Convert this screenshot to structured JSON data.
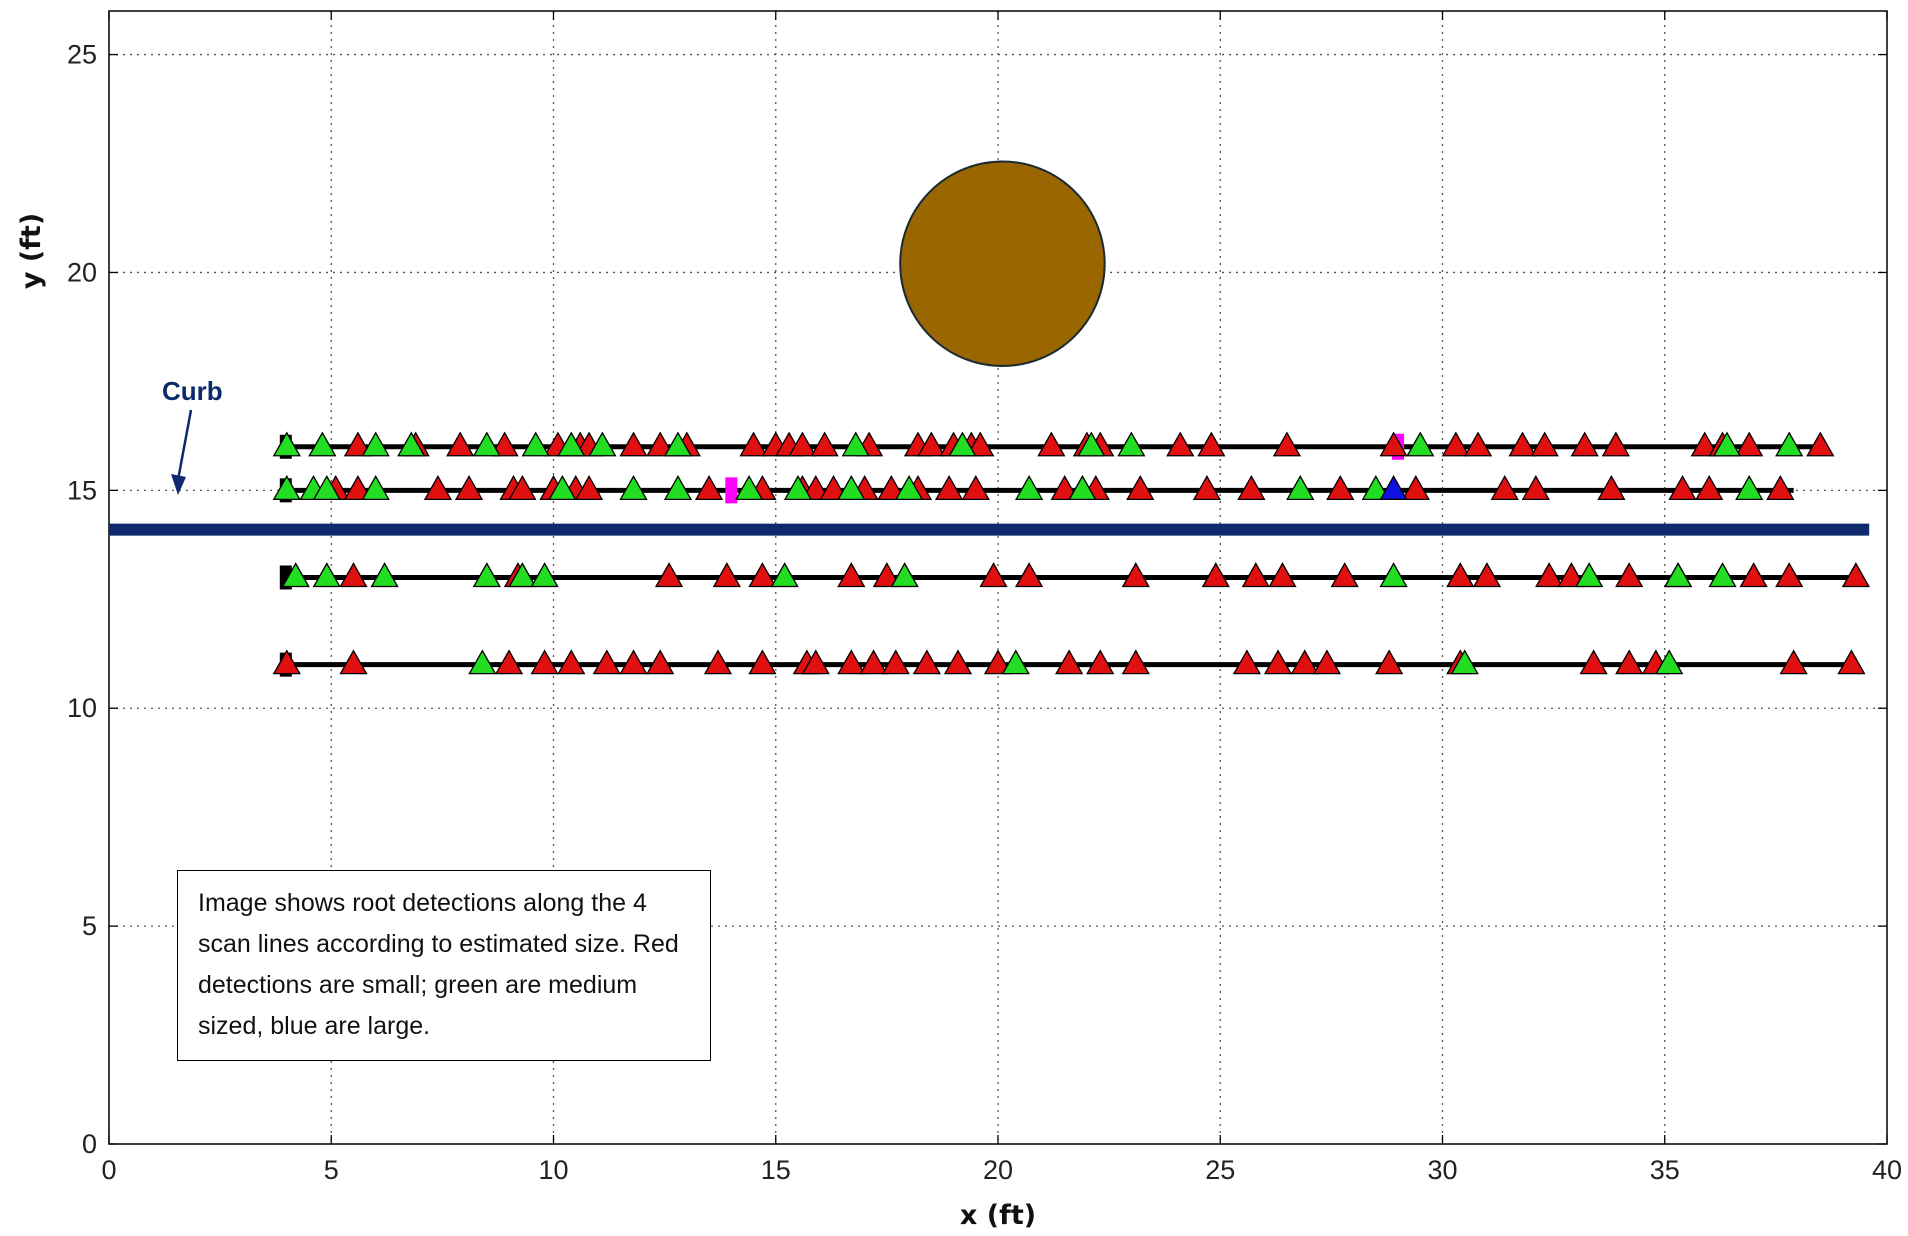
{
  "chart_data": {
    "type": "scatter",
    "xlabel": "x (ft)",
    "ylabel": "y (ft)",
    "xlim": [
      0,
      40
    ],
    "ylim": [
      0,
      26
    ],
    "xticks": [
      0,
      5,
      10,
      15,
      20,
      25,
      30,
      35,
      40
    ],
    "yticks": [
      0,
      5,
      10,
      15,
      20,
      25
    ],
    "grid": true,
    "annotation_text": "Image shows root detections along the 4 scan lines according to estimated size. Red detections are small; green are medium sized, blue are large.",
    "curb": {
      "label": "Curb",
      "y": 14.1,
      "x_range": [
        0,
        39.6
      ],
      "color": "#0d2a6e"
    },
    "tree": {
      "center": [
        20.1,
        20.2
      ],
      "radius": 2.3,
      "color": "#996600"
    },
    "colors": {
      "small": "#e01010",
      "medium": "#22dd22",
      "large": "#1010e0",
      "marker": "#ff00ff",
      "start": "#000000"
    },
    "scan_lines": [
      {
        "y": 16,
        "x_range": [
          4,
          38.6
        ],
        "small": [
          5.6,
          6.9,
          7.9,
          8.9,
          10.1,
          10.6,
          10.8,
          11.8,
          12.4,
          13.0,
          14.5,
          15.0,
          15.3,
          15.6,
          16.1,
          17.1,
          18.2,
          18.5,
          19.0,
          19.4,
          19.6,
          21.2,
          22.0,
          22.3,
          24.1,
          24.8,
          26.5,
          28.9,
          30.3,
          30.8,
          31.8,
          32.3,
          33.2,
          33.9,
          35.9,
          36.3,
          36.9,
          38.5
        ],
        "medium": [
          4.0,
          4.8,
          6.0,
          6.8,
          8.5,
          9.6,
          10.4,
          11.1,
          12.8,
          16.8,
          19.2,
          22.1,
          23.0,
          29.5,
          36.4,
          37.8
        ],
        "large": [],
        "marker": [
          29.0
        ]
      },
      {
        "y": 15,
        "x_range": [
          4,
          37.9
        ],
        "small": [
          5.1,
          5.6,
          7.4,
          8.1,
          9.1,
          9.3,
          10.0,
          10.5,
          10.8,
          13.5,
          14.7,
          15.6,
          15.9,
          16.3,
          17.0,
          17.6,
          18.2,
          18.9,
          19.5,
          21.5,
          21.9,
          22.2,
          23.2,
          24.7,
          25.7,
          27.7,
          29.4,
          31.4,
          32.1,
          33.8,
          35.4,
          36.0,
          37.6
        ],
        "medium": [
          4.0,
          4.6,
          4.9,
          6.0,
          10.2,
          11.8,
          12.8,
          14.4,
          15.5,
          16.7,
          18.0,
          20.7,
          21.9,
          26.8,
          28.5,
          36.9
        ],
        "large": [
          28.9
        ],
        "marker": [
          14.0
        ]
      },
      {
        "y": 13,
        "x_range": [
          4,
          39.4
        ],
        "small": [
          5.5,
          9.2,
          12.6,
          13.9,
          14.7,
          16.7,
          17.5,
          19.9,
          20.7,
          23.1,
          24.9,
          25.8,
          26.4,
          27.8,
          30.4,
          31.0,
          32.4,
          32.9,
          34.2,
          35.3,
          37.0,
          37.8,
          39.3
        ],
        "medium": [
          4.2,
          4.9,
          6.2,
          8.5,
          9.3,
          9.8,
          15.2,
          17.9,
          28.9,
          33.3,
          35.3,
          36.3
        ],
        "large": [],
        "marker": []
      },
      {
        "y": 11,
        "x_range": [
          4,
          39.3
        ],
        "small": [
          4.0,
          5.5,
          9.0,
          9.8,
          10.4,
          11.2,
          11.8,
          12.4,
          13.7,
          14.7,
          15.7,
          15.9,
          16.7,
          17.2,
          17.7,
          18.4,
          19.1,
          20.0,
          21.6,
          22.3,
          23.1,
          25.6,
          26.3,
          26.9,
          27.4,
          28.8,
          30.4,
          33.4,
          34.2,
          34.8,
          37.9,
          39.2
        ],
        "medium": [
          8.4,
          20.4,
          30.5,
          35.1
        ],
        "large": [],
        "marker": []
      }
    ]
  }
}
